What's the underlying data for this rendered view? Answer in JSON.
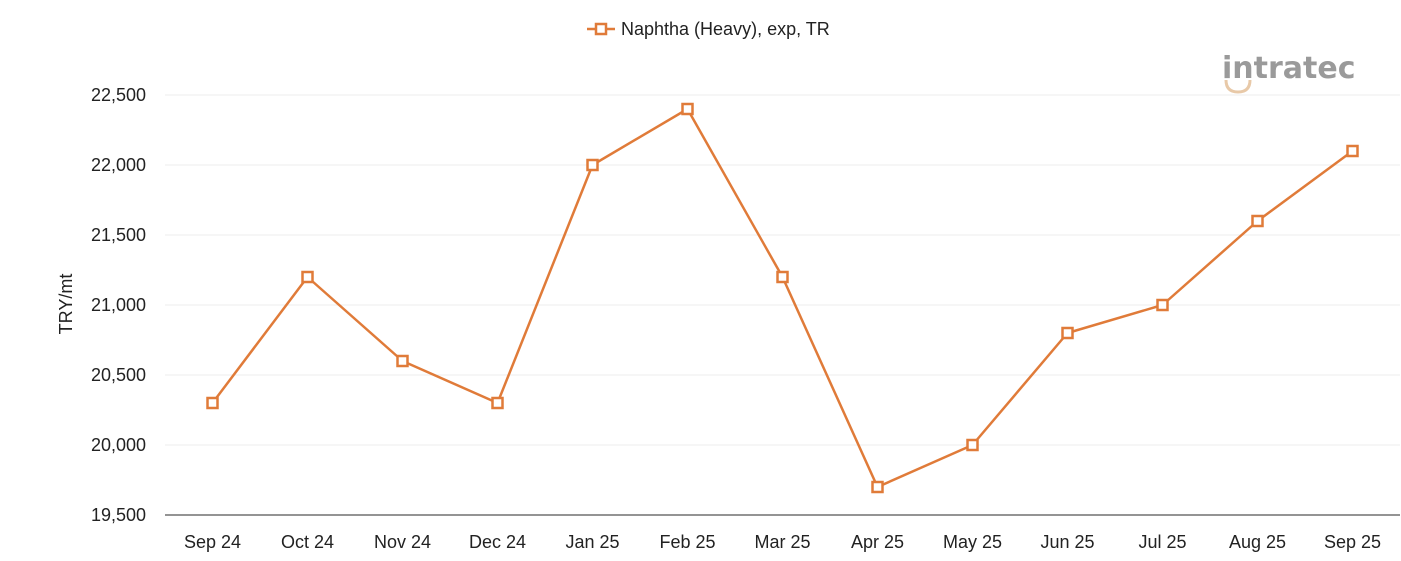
{
  "chart_data": {
    "type": "line",
    "categories": [
      "Sep 24",
      "Oct 24",
      "Nov 24",
      "Dec 24",
      "Jan 25",
      "Feb 25",
      "Mar 25",
      "Apr 25",
      "May 25",
      "Jun 25",
      "Jul 25",
      "Aug 25",
      "Sep 25"
    ],
    "series": [
      {
        "name": "Naphtha (Heavy), exp, TR",
        "values": [
          20300,
          21200,
          20600,
          20300,
          22000,
          22400,
          21200,
          19700,
          20000,
          20800,
          21000,
          21600,
          22100
        ],
        "color": "#e07b39",
        "marker": "square-open"
      }
    ],
    "ylabel": "TRY/mt",
    "xlabel": "",
    "ylim": [
      19500,
      22500
    ],
    "yticks": [
      19500,
      20000,
      20500,
      21000,
      21500,
      22000,
      22500
    ],
    "ytick_labels": [
      "19,500",
      "20,000",
      "20,500",
      "21,000",
      "21,500",
      "22,000",
      "22,500"
    ],
    "grid": true,
    "legend_position": "top-center"
  },
  "logo": {
    "text": "intratec",
    "color": "#9a9a9a",
    "accent": "#e8c9a8"
  }
}
